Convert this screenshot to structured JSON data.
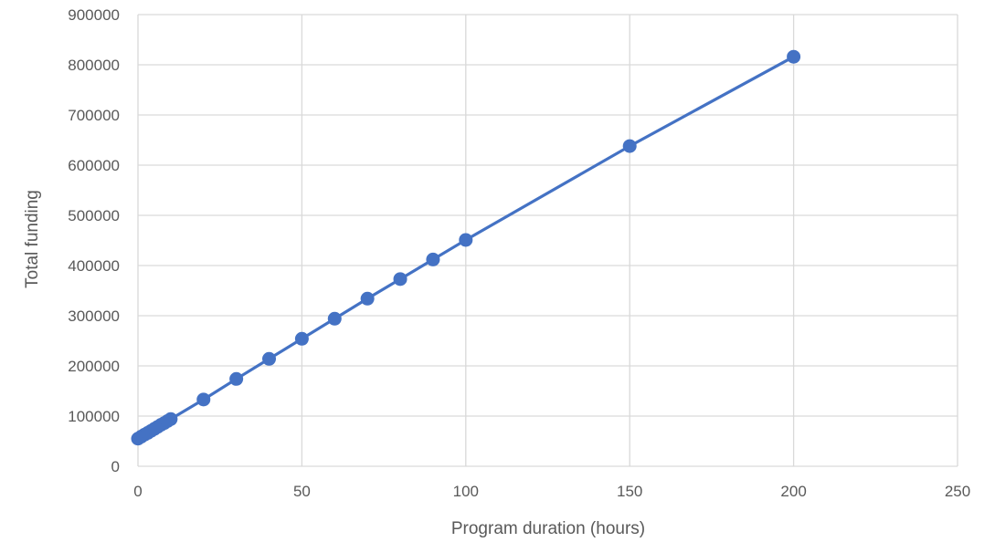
{
  "chart_data": {
    "type": "line",
    "title": "",
    "xlabel": "Program duration (hours)",
    "ylabel": "Total funding",
    "xlim": [
      0,
      250
    ],
    "ylim": [
      0,
      900000
    ],
    "x_ticks": [
      "0",
      "50",
      "100",
      "150",
      "200",
      "250"
    ],
    "y_ticks": [
      "0",
      "100000",
      "200000",
      "300000",
      "400000",
      "500000",
      "600000",
      "700000",
      "800000",
      "900000"
    ],
    "grid": true,
    "legend": "none",
    "series_color": "#4472c4",
    "series": [
      {
        "x": [
          0,
          1,
          2,
          3,
          4,
          5,
          6,
          7,
          8,
          9,
          10,
          20,
          30,
          40,
          50,
          60,
          70,
          80,
          90,
          100,
          150,
          200
        ],
        "y": [
          55000,
          59000,
          63000,
          66500,
          70500,
          74500,
          78500,
          82500,
          86000,
          90000,
          94000,
          133000,
          174000,
          214000,
          254000,
          294000,
          334000,
          373000,
          412000,
          451000,
          638000,
          816000
        ]
      }
    ]
  }
}
